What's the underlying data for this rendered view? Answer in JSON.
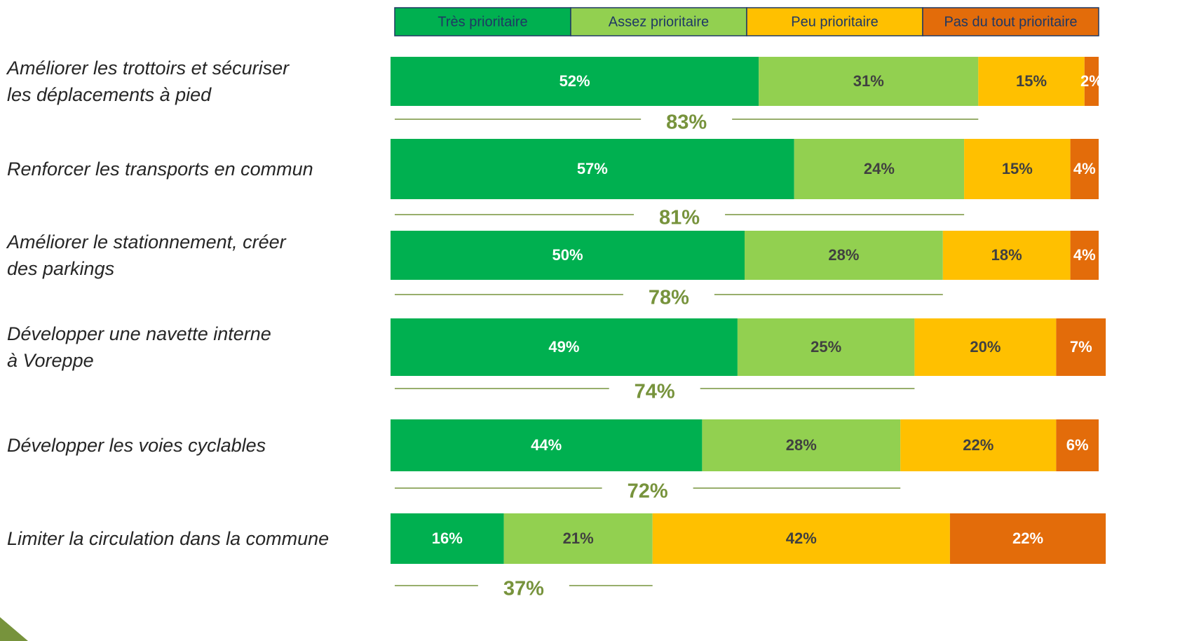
{
  "chart_data": {
    "type": "stacked_bar_horizontal",
    "categories": [
      "Améliorer les trottoirs et sécuriser\nles déplacements à pied",
      "Renforcer les transports en commun",
      "Améliorer le stationnement, créer\ndes parkings",
      "Développer une navette interne\nà Voreppe",
      "Développer les voies cyclables",
      "Limiter la circulation dans la commune"
    ],
    "xlim": [
      0,
      100
    ],
    "series": [
      {
        "name": "Très prioritaire",
        "color": "#00b050",
        "values": [
          52,
          57,
          50,
          49,
          44,
          16
        ],
        "value_labels": [
          "52%",
          "57%",
          "50%",
          "49%",
          "44%",
          "16%"
        ]
      },
      {
        "name": "Assez prioritaire",
        "color": "#92d050",
        "values": [
          31,
          24,
          28,
          25,
          28,
          21
        ],
        "value_labels": [
          "31%",
          "24%",
          "28%",
          "25%",
          "28%",
          "21%"
        ]
      },
      {
        "name": "Peu prioritaire",
        "color": "#ffc000",
        "values": [
          15,
          15,
          18,
          20,
          22,
          42
        ],
        "value_labels": [
          "15%",
          "15%",
          "18%",
          "20%",
          "22%",
          "42%"
        ]
      },
      {
        "name": "Pas du tout prioritaire",
        "color": "#e36c0a",
        "values": [
          2,
          4,
          4,
          7,
          6,
          22
        ],
        "value_labels": [
          "2%",
          "4%",
          "4%",
          "7%",
          "6%",
          "22%"
        ]
      }
    ],
    "totals": {
      "values": [
        83,
        81,
        78,
        74,
        72,
        37
      ],
      "value_labels": [
        "83%",
        "81%",
        "78%",
        "74%",
        "72%",
        "37%"
      ],
      "color": "#77933c"
    }
  }
}
